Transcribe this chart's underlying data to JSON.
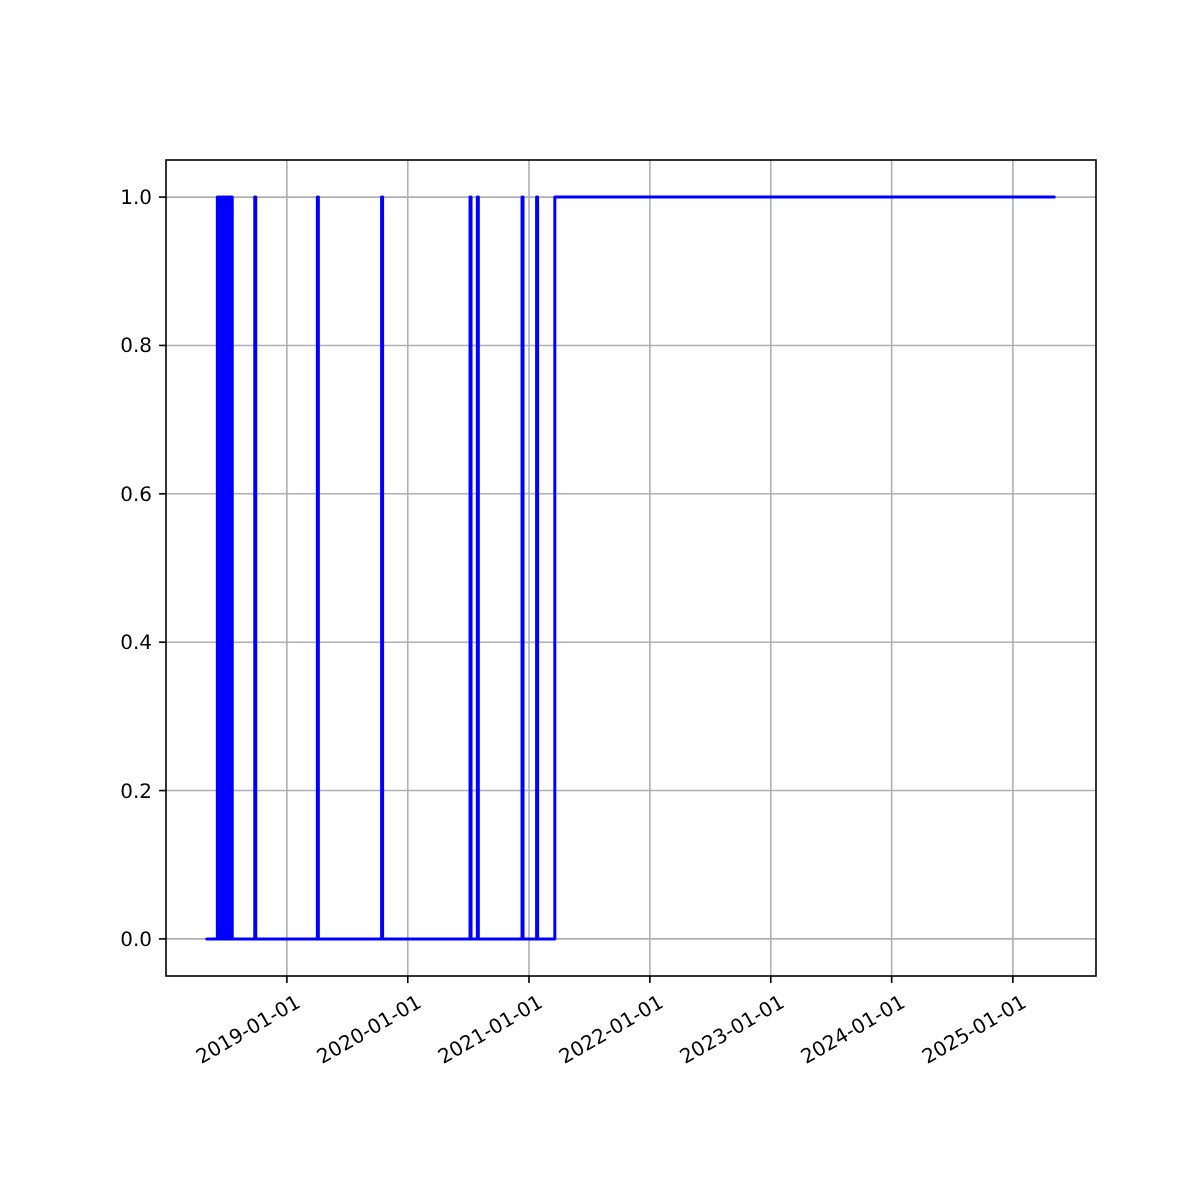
{
  "chart_data": {
    "type": "step",
    "x": [
      "2018-05-04",
      "2018-06-05",
      "2018-06-08",
      "2018-06-12",
      "2018-06-16",
      "2018-06-20",
      "2018-06-24",
      "2018-06-28",
      "2018-07-02",
      "2018-07-06",
      "2018-07-10",
      "2018-07-14",
      "2018-07-20",
      "2018-09-26",
      "2018-09-29",
      "2019-04-03",
      "2019-04-06",
      "2019-10-14",
      "2019-10-17",
      "2020-07-07",
      "2020-07-10",
      "2020-07-29",
      "2020-08-01",
      "2020-12-11",
      "2020-12-14",
      "2021-01-24",
      "2021-01-27",
      "2021-03-20",
      "2025-05-06"
    ],
    "series": [
      {
        "color": "#0000ff",
        "values": [
          0,
          1,
          0,
          1,
          0,
          1,
          0,
          1,
          0,
          1,
          0,
          1,
          0,
          1,
          0,
          1,
          0,
          1,
          0,
          1,
          0,
          1,
          0,
          1,
          0,
          1,
          0,
          1,
          1
        ]
      }
    ],
    "xlim": [
      "2018-01-01",
      "2025-09-09"
    ],
    "xticks": [
      "2019-01-01",
      "2020-01-01",
      "2021-01-01",
      "2022-01-01",
      "2023-01-01",
      "2024-01-01",
      "2025-01-01"
    ],
    "ylim": [
      -0.05,
      1.05
    ],
    "yticks": [
      {
        "value": 0,
        "label": "0.0"
      },
      {
        "value": 0.2,
        "label": "0.2"
      },
      {
        "value": 0.4,
        "label": "0.4"
      },
      {
        "value": 0.6,
        "label": "0.6"
      },
      {
        "value": 0.8,
        "label": "0.8"
      },
      {
        "value": 1,
        "label": "1.0"
      }
    ],
    "grid": true
  }
}
